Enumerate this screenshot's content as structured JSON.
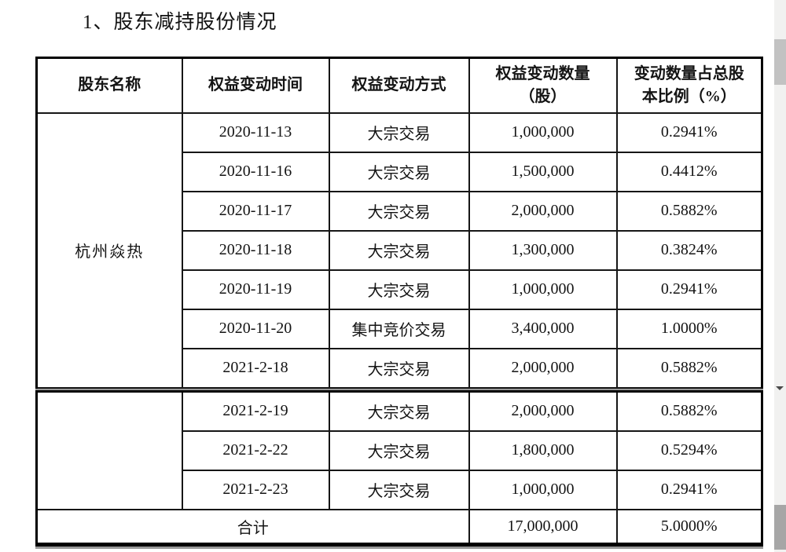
{
  "page": {
    "title": "1、股东减持股份情况"
  },
  "table": {
    "headers": [
      "股东名称",
      "权益变动时间",
      "权益变动方式",
      "权益变动数量\n（股）",
      "变动数量占总股\n本比例（%）"
    ],
    "shareholder": "杭州焱热",
    "shareholder_continued": "",
    "sections": [
      {
        "rows": [
          {
            "date": "2020-11-13",
            "method": "大宗交易",
            "quantity": "1,000,000",
            "ratio": "0.2941%"
          },
          {
            "date": "2020-11-16",
            "method": "大宗交易",
            "quantity": "1,500,000",
            "ratio": "0.4412%"
          },
          {
            "date": "2020-11-17",
            "method": "大宗交易",
            "quantity": "2,000,000",
            "ratio": "0.5882%"
          },
          {
            "date": "2020-11-18",
            "method": "大宗交易",
            "quantity": "1,300,000",
            "ratio": "0.3824%"
          },
          {
            "date": "2020-11-19",
            "method": "大宗交易",
            "quantity": "1,000,000",
            "ratio": "0.2941%"
          },
          {
            "date": "2020-11-20",
            "method": "集中竞价交易",
            "quantity": "3,400,000",
            "ratio": "1.0000%"
          },
          {
            "date": "2021-2-18",
            "method": "大宗交易",
            "quantity": "2,000,000",
            "ratio": "0.5882%"
          }
        ]
      },
      {
        "rows": [
          {
            "date": "2021-2-19",
            "method": "大宗交易",
            "quantity": "2,000,000",
            "ratio": "0.5882%"
          },
          {
            "date": "2021-2-22",
            "method": "大宗交易",
            "quantity": "1,800,000",
            "ratio": "0.5294%"
          },
          {
            "date": "2021-2-23",
            "method": "大宗交易",
            "quantity": "1,000,000",
            "ratio": "0.2941%"
          }
        ]
      }
    ],
    "total": {
      "label": "合计",
      "quantity": "17,000,000",
      "ratio": "5.0000%"
    }
  },
  "scrollbar": {
    "track_color": "#f1f1f0",
    "thumb_color": "#c2c2c2",
    "block_color": "#a6a6a6",
    "arrow_color": "#4a4a4a"
  }
}
